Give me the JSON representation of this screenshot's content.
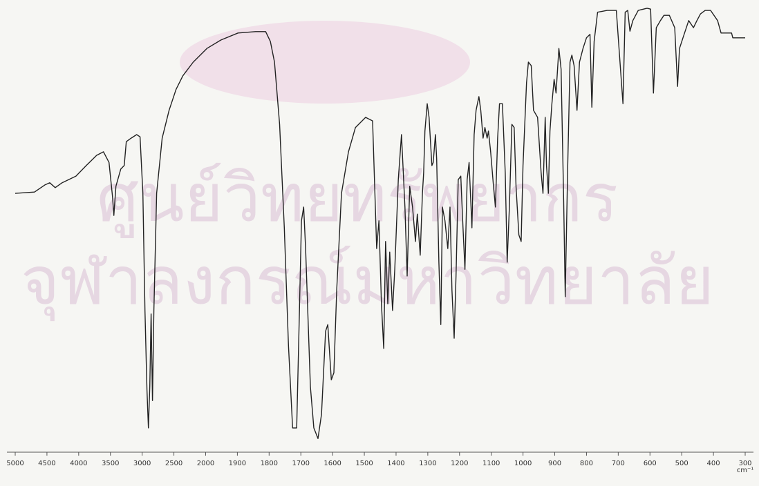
{
  "chart_data": {
    "type": "line",
    "watermark": [
      "ศูนย์วิทยทรัพยากร",
      "จุฬาลงกรณ์มหาวิทยาลัย"
    ],
    "x_label": "cm⁻¹",
    "color": "#222222",
    "xlim": [
      5000,
      300
    ],
    "ylim": [
      0,
      100
    ],
    "xticks": [
      5000,
      4500,
      4000,
      3500,
      3000,
      2500,
      2000,
      1900,
      1800,
      1700,
      1600,
      1500,
      1400,
      1300,
      1200,
      1100,
      1000,
      900,
      800,
      700,
      600,
      500,
      400,
      300
    ],
    "x": [
      5000,
      4696,
      4533,
      4457,
      4370,
      4261,
      4043,
      3880,
      3717,
      3609,
      3522,
      3467,
      3446,
      3413,
      3337,
      3283,
      3250,
      3174,
      3087,
      3033,
      2989,
      2956,
      2924,
      2902,
      2880,
      2859,
      2837,
      2815,
      2772,
      2685,
      2576,
      2467,
      2359,
      2196,
      1996,
      1952,
      1898,
      1843,
      1811,
      1796,
      1783,
      1767,
      1752,
      1739,
      1726,
      1713,
      1704,
      1698,
      1691,
      1685,
      1670,
      1659,
      1646,
      1635,
      1622,
      1615,
      1604,
      1596,
      1587,
      1572,
      1550,
      1528,
      1496,
      1474,
      1461,
      1454,
      1446,
      1439,
      1433,
      1426,
      1420,
      1411,
      1404,
      1393,
      1383,
      1372,
      1365,
      1357,
      1348,
      1339,
      1333,
      1324,
      1317,
      1313,
      1309,
      1302,
      1296,
      1287,
      1283,
      1276,
      1272,
      1265,
      1259,
      1254,
      1246,
      1237,
      1230,
      1224,
      1217,
      1211,
      1204,
      1196,
      1189,
      1183,
      1176,
      1170,
      1161,
      1154,
      1148,
      1139,
      1133,
      1126,
      1120,
      1113,
      1109,
      1102,
      1093,
      1087,
      1080,
      1074,
      1065,
      1056,
      1050,
      1043,
      1035,
      1028,
      1022,
      1013,
      1006,
      1000,
      989,
      983,
      974,
      967,
      954,
      943,
      937,
      930,
      926,
      920,
      915,
      909,
      902,
      896,
      887,
      880,
      872,
      867,
      859,
      852,
      846,
      839,
      830,
      822,
      811,
      800,
      789,
      783,
      776,
      765,
      735,
      717,
      706,
      685,
      678,
      670,
      663,
      654,
      637,
      609,
      598,
      589,
      580,
      567,
      556,
      539,
      522,
      513,
      507,
      496,
      478,
      463,
      452,
      441,
      426,
      409,
      387,
      376,
      343,
      339,
      300
    ],
    "values": [
      57.8,
      58.1,
      59.7,
      60.2,
      59.1,
      60.2,
      61.7,
      64.1,
      66.4,
      67.2,
      64.8,
      57.0,
      52.8,
      59.4,
      63.3,
      64.1,
      69.5,
      70.3,
      71.1,
      70.6,
      57.8,
      31.3,
      13.3,
      4.7,
      14.1,
      30.5,
      10.9,
      31.3,
      57.8,
      70.3,
      76.6,
      81.3,
      84.4,
      87.5,
      90.6,
      92.5,
      94.1,
      94.4,
      94.4,
      92.2,
      87.5,
      73.4,
      50.0,
      23.4,
      4.7,
      4.7,
      32.8,
      51.6,
      54.7,
      45.3,
      14.1,
      4.7,
      2.3,
      7.8,
      26.6,
      28.1,
      15.6,
      17.2,
      35.9,
      57.8,
      67.2,
      72.7,
      75.0,
      74.2,
      45.3,
      51.6,
      32.8,
      22.7,
      46.9,
      32.8,
      44.5,
      31.3,
      40.6,
      60.9,
      71.1,
      54.7,
      39.1,
      59.4,
      54.7,
      46.9,
      53.1,
      43.8,
      57.8,
      62.5,
      71.9,
      78.1,
      75.0,
      64.1,
      64.8,
      71.1,
      65.6,
      42.2,
      28.1,
      54.7,
      51.6,
      45.3,
      54.7,
      35.9,
      25.0,
      39.1,
      60.9,
      61.7,
      50.0,
      40.6,
      60.9,
      64.8,
      50.0,
      71.1,
      76.6,
      79.7,
      76.6,
      70.3,
      72.7,
      70.3,
      71.9,
      67.2,
      59.4,
      54.7,
      70.3,
      78.1,
      78.1,
      62.5,
      42.2,
      54.7,
      73.4,
      72.7,
      59.4,
      48.4,
      46.9,
      64.1,
      82.8,
      87.5,
      86.7,
      76.6,
      75.0,
      62.5,
      57.8,
      75.0,
      64.1,
      57.8,
      71.9,
      78.1,
      83.6,
      80.5,
      90.6,
      85.9,
      56.3,
      34.4,
      64.1,
      87.5,
      89.1,
      86.7,
      76.6,
      87.5,
      90.6,
      93.0,
      93.8,
      77.3,
      92.2,
      98.8,
      99.2,
      99.2,
      99.2,
      78.1,
      98.8,
      99.2,
      94.5,
      96.9,
      99.2,
      99.7,
      99.5,
      80.5,
      95.3,
      96.9,
      98.1,
      98.1,
      95.3,
      82.0,
      90.6,
      93.0,
      96.9,
      95.3,
      96.9,
      98.4,
      99.2,
      99.2,
      96.9,
      94.1,
      94.1,
      93.0,
      93.0
    ]
  }
}
